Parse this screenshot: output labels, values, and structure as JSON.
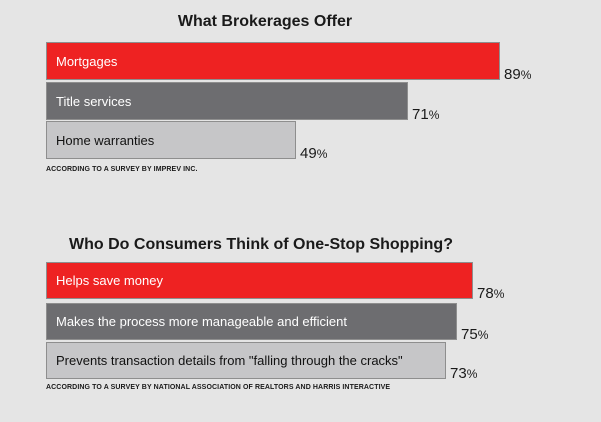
{
  "colors": {
    "background": "#e5e5e5",
    "red": "#ee2222",
    "dark_gray": "#6d6d70",
    "light_gray": "#c6c6c8"
  },
  "chart_data": [
    {
      "type": "bar",
      "orientation": "horizontal",
      "title": "What Brokerages Offer",
      "categories": [
        "Mortgages",
        "Title services",
        "Home warranties"
      ],
      "values": [
        89,
        71,
        49
      ],
      "value_labels": [
        "89",
        "71",
        "49"
      ],
      "unit": "%",
      "bar_colors": [
        "#ee2222",
        "#6d6d70",
        "#c6c6c8"
      ],
      "xlim": [
        0,
        100
      ],
      "grid": false,
      "source": "ACCORDING TO A SURVEY BY IMPREV INC."
    },
    {
      "type": "bar",
      "orientation": "horizontal",
      "title": "Who Do Consumers Think of One-Stop Shopping?",
      "categories": [
        "Helps save money",
        "Makes the process more manageable and efficient",
        "Prevents transaction details from \"falling through the cracks\""
      ],
      "values": [
        78,
        75,
        73
      ],
      "value_labels": [
        "78",
        "75",
        "73"
      ],
      "unit": "%",
      "bar_colors": [
        "#ee2222",
        "#6d6d70",
        "#c6c6c8"
      ],
      "xlim": [
        0,
        100
      ],
      "grid": false,
      "source": "ACCORDING TO A SURVEY BY NATIONAL ASSOCIATION OF REALTORS AND HARRIS INTERACTIVE"
    }
  ]
}
